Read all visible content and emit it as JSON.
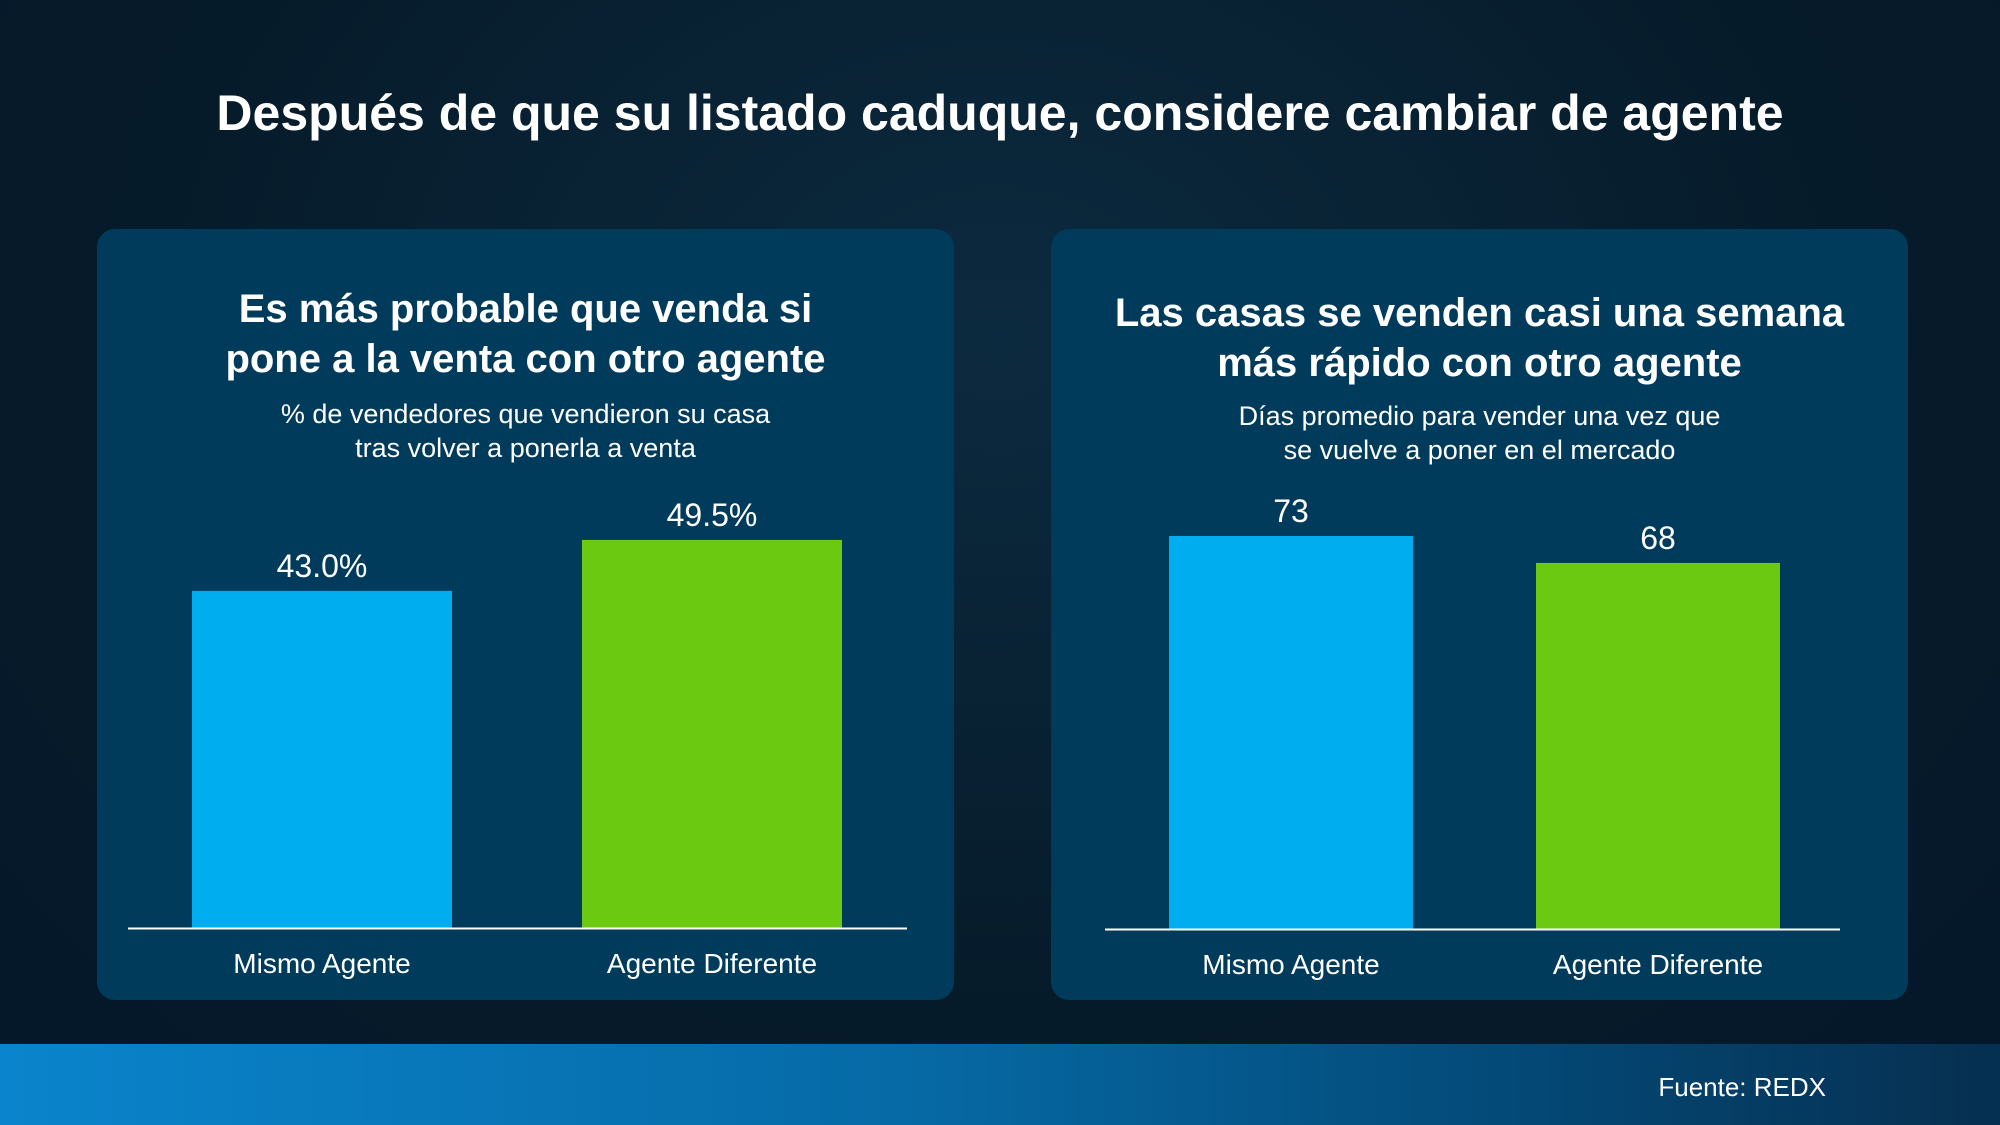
{
  "title": "Después de que su listado caduque, considere cambiar de agente",
  "source": "Fuente: REDX",
  "colors": {
    "same_agent": "#00adef",
    "different_agent": "#6cc911"
  },
  "chart_data": [
    {
      "type": "bar",
      "title_lines": [
        "Es más probable que venda si",
        "pone a la venta con otro agente"
      ],
      "subtitle_lines": [
        "% de vendedores que vendieron su casa",
        "tras volver a ponerla a venta"
      ],
      "categories": [
        "Mismo Agente",
        "Agente Diferente"
      ],
      "values": [
        43.0,
        49.5
      ],
      "value_labels": [
        "43.0%",
        "49.5%"
      ],
      "ylim": [
        0,
        50
      ]
    },
    {
      "type": "bar",
      "title_lines": [
        "Las casas se venden casi una semana",
        "más rápido con otro agente"
      ],
      "subtitle_lines": [
        "Días promedio para vender una vez que",
        "se vuelve a poner en el mercado"
      ],
      "categories": [
        "Mismo Agente",
        "Agente Diferente"
      ],
      "values": [
        73,
        68
      ],
      "value_labels": [
        "73",
        "68"
      ],
      "ylim": [
        0,
        73
      ]
    }
  ]
}
